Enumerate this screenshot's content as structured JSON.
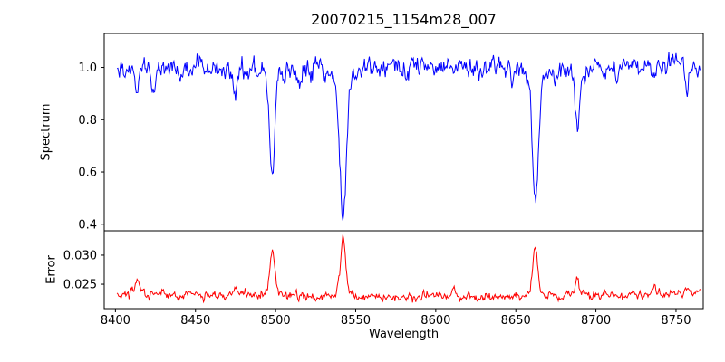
{
  "chart_data": {
    "type": "line",
    "title": "20070215_1154m28_007",
    "xlabel": "Wavelength",
    "xlim": [
      8393,
      8767
    ],
    "x_range": [
      8401,
      8765
    ],
    "x_step": 0.5,
    "xticks": [
      8400,
      8450,
      8500,
      8550,
      8600,
      8650,
      8700,
      8750
    ],
    "grid": false,
    "legend": "none",
    "seed": 20070215,
    "panels": [
      {
        "name": "spectrum",
        "ylabel": "Spectrum",
        "color": "#0000ff",
        "ylim": [
          0.375,
          1.13
        ],
        "ytick_values": [
          0.4,
          0.6,
          0.8,
          1.0
        ],
        "ytick_labels": [
          "0.4",
          "0.6",
          "0.8",
          "1.0"
        ],
        "continuum": 1.0,
        "noise_sigma": 0.021,
        "absorption_lines": [
          {
            "center": 8413.5,
            "depth": 0.08,
            "sigma": 1.2
          },
          {
            "center": 8423.5,
            "depth": 0.09,
            "sigma": 1.2
          },
          {
            "center": 8440.5,
            "depth": 0.06,
            "sigma": 1.1
          },
          {
            "center": 8475.0,
            "depth": 0.1,
            "sigma": 1.3
          },
          {
            "center": 8498.0,
            "depth": 0.4,
            "sigma": 1.7
          },
          {
            "center": 8514.5,
            "depth": 0.06,
            "sigma": 1.1
          },
          {
            "center": 8542.1,
            "depth": 0.59,
            "sigma": 2.1
          },
          {
            "center": 8582.5,
            "depth": 0.05,
            "sigma": 1.1
          },
          {
            "center": 8611.0,
            "depth": 0.05,
            "sigma": 1.0
          },
          {
            "center": 8648.0,
            "depth": 0.05,
            "sigma": 1.0
          },
          {
            "center": 8662.1,
            "depth": 0.53,
            "sigma": 1.9
          },
          {
            "center": 8674.5,
            "depth": 0.06,
            "sigma": 1.1
          },
          {
            "center": 8688.5,
            "depth": 0.2,
            "sigma": 1.4
          },
          {
            "center": 8713.0,
            "depth": 0.05,
            "sigma": 1.0
          },
          {
            "center": 8736.5,
            "depth": 0.06,
            "sigma": 1.1
          },
          {
            "center": 8757.0,
            "depth": 0.05,
            "sigma": 1.0
          }
        ]
      },
      {
        "name": "error",
        "ylabel": "Error",
        "color": "#ff0000",
        "ylim": [
          0.0208,
          0.0342
        ],
        "ytick_values": [
          0.025,
          0.03
        ],
        "ytick_labels": [
          "0.025",
          "0.030"
        ],
        "baseline": 0.0228,
        "edge_rise": 0.0006,
        "curve_center": 8583,
        "noise_sigma": 0.00038,
        "spikes": [
          {
            "center": 8413.5,
            "amp": 0.0025,
            "sigma": 1.2
          },
          {
            "center": 8475.0,
            "amp": 0.0018,
            "sigma": 1.2
          },
          {
            "center": 8498.0,
            "amp": 0.0076,
            "sigma": 1.5
          },
          {
            "center": 8542.1,
            "amp": 0.0098,
            "sigma": 1.6
          },
          {
            "center": 8611.0,
            "amp": 0.0012,
            "sigma": 1.0
          },
          {
            "center": 8662.1,
            "amp": 0.0086,
            "sigma": 1.5
          },
          {
            "center": 8688.5,
            "amp": 0.003,
            "sigma": 1.2
          },
          {
            "center": 8736.5,
            "amp": 0.0015,
            "sigma": 1.0
          },
          {
            "center": 8757.0,
            "amp": 0.0014,
            "sigma": 1.0
          }
        ]
      }
    ]
  }
}
